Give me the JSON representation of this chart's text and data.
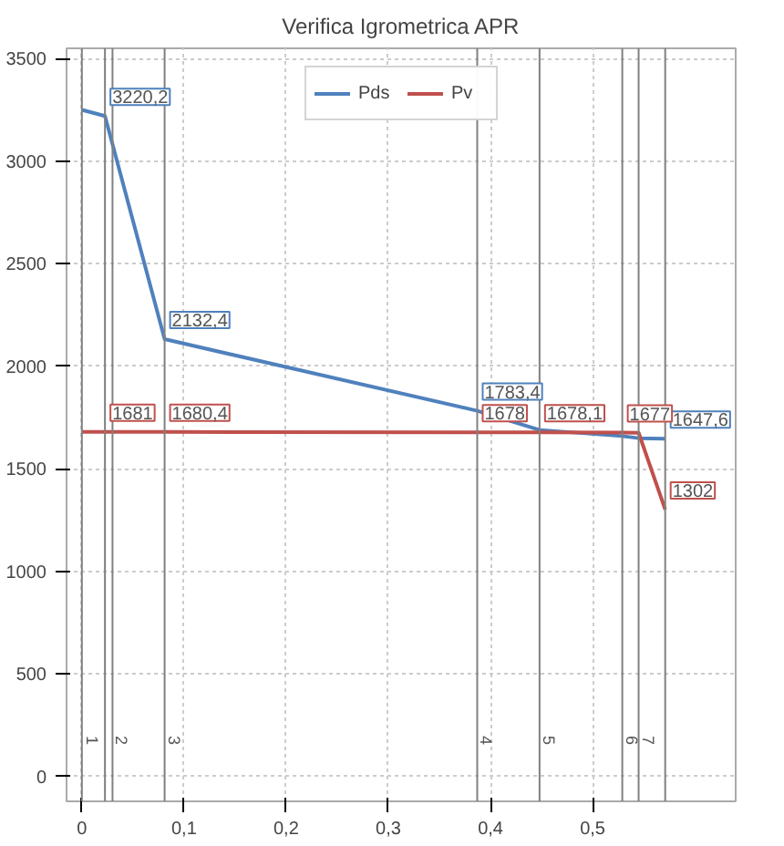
{
  "chart_data": {
    "type": "line",
    "title": "Verifica Igrometrica APR",
    "x": [
      0,
      0.0226,
      0.081,
      0.387,
      0.448,
      0.529,
      0.545,
      0.571
    ],
    "series": [
      {
        "name": "Pds",
        "color": "#4f81bd",
        "values": [
          3250,
          3220.2,
          2132.4,
          1783.4,
          1690,
          1660,
          1650,
          1647.6
        ],
        "value_labels": [
          null,
          "3220,2",
          "2132,4",
          "1783,4",
          null,
          null,
          null,
          "1647,6"
        ]
      },
      {
        "name": "Pv",
        "color": "#c0504d",
        "values": [
          1681,
          1681,
          1680.4,
          1678,
          1678.1,
          1677,
          1676,
          1302
        ],
        "value_labels": [
          null,
          "1681",
          "1680,4",
          "1678",
          "1678,1",
          "1677",
          null,
          "1302"
        ]
      }
    ],
    "xlim": [
      -0.015,
      0.64
    ],
    "ylim": [
      -120,
      3550
    ],
    "xticks": [
      0,
      {
        "value": 0.1,
        "label": "0,1"
      },
      {
        "value": 0.2,
        "label": "0,2"
      },
      {
        "value": 0.3,
        "label": "0,3"
      },
      {
        "value": 0.4,
        "label": "0,4"
      },
      {
        "value": 0.5,
        "label": "0,5"
      }
    ],
    "yticks": [
      0,
      500,
      1000,
      1500,
      2000,
      2500,
      3000,
      3500
    ],
    "ref_lines": [
      {
        "axis": "x",
        "value": 0,
        "color": "#808080"
      },
      {
        "axis": "x",
        "value": 0.0226,
        "color": "#808080"
      },
      {
        "axis": "x",
        "value": 0.03,
        "color": "#808080"
      },
      {
        "axis": "x",
        "value": 0.081,
        "color": "#808080"
      },
      {
        "axis": "x",
        "value": 0.387,
        "color": "#808080"
      },
      {
        "axis": "x",
        "value": 0.448,
        "color": "#808080"
      },
      {
        "axis": "x",
        "value": 0.529,
        "color": "#808080"
      },
      {
        "axis": "x",
        "value": 0.545,
        "color": "#808080"
      },
      {
        "axis": "x",
        "value": 0.571,
        "color": "#808080"
      }
    ],
    "annotations": [
      {
        "text": "1",
        "x": 0.0226,
        "y": 200
      },
      {
        "text": "2",
        "x": 0.03,
        "y": 200
      },
      {
        "text": "3",
        "x": 0.081,
        "y": 200
      },
      {
        "text": "4",
        "x": 0.387,
        "y": 200
      },
      {
        "text": "5",
        "x": 0.448,
        "y": 200
      },
      {
        "text": "6",
        "x": 0.529,
        "y": 200
      },
      {
        "text": "7",
        "x": 0.545,
        "y": 200
      }
    ],
    "grid": true,
    "legend": "top",
    "marker": "none",
    "line_style": "solid"
  }
}
